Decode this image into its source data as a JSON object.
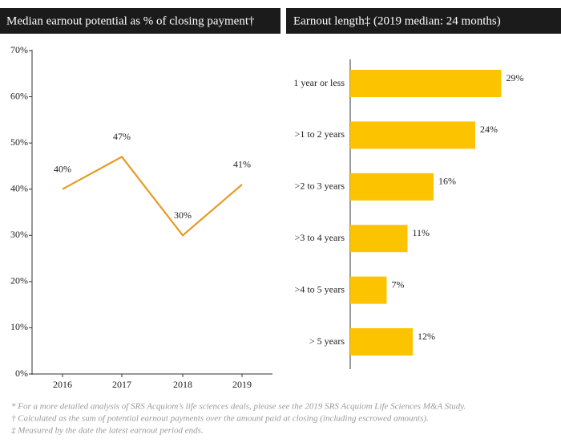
{
  "chart_data": [
    {
      "type": "line",
      "title": "Median earnout potential as % of closing payment†",
      "categories": [
        "2016",
        "2017",
        "2018",
        "2019"
      ],
      "values": [
        40,
        47,
        30,
        41
      ],
      "value_labels": [
        "40%",
        "47%",
        "30%",
        "41%"
      ],
      "color": "#e89a23",
      "ylim": [
        0,
        70
      ],
      "yticks": [
        {
          "value": 0,
          "label": "0%"
        },
        {
          "value": 10,
          "label": "10%"
        },
        {
          "value": 20,
          "label": "20%"
        },
        {
          "value": 30,
          "label": "30%"
        },
        {
          "value": 40,
          "label": "40%"
        },
        {
          "value": 50,
          "label": "50%"
        },
        {
          "value": 60,
          "label": "60%"
        },
        {
          "value": 70,
          "label": "70%"
        }
      ]
    },
    {
      "type": "hbar",
      "title": "Earnout length‡ (2019 median: 24 months)",
      "categories": [
        "1 year or less",
        ">1 to 2 years",
        ">2 to 3 years",
        ">3 to 4 years",
        ">4 to 5 years",
        "> 5 years"
      ],
      "values": [
        29,
        24,
        16,
        11,
        7,
        12
      ],
      "value_labels": [
        "29%",
        "24%",
        "16%",
        "11%",
        "7%",
        "12%"
      ],
      "color": "#fcc400"
    }
  ],
  "footnotes": [
    "* For a more detailed analysis of SRS Acquiom’s life sciences deals, please see the 2019 SRS Acquiom Life Sciences M&A Study.",
    "† Calculated as the sum of potential earnout payments over the amount paid at closing (including escrowed amounts).",
    "‡ Measured by the date the latest earnout period ends."
  ]
}
